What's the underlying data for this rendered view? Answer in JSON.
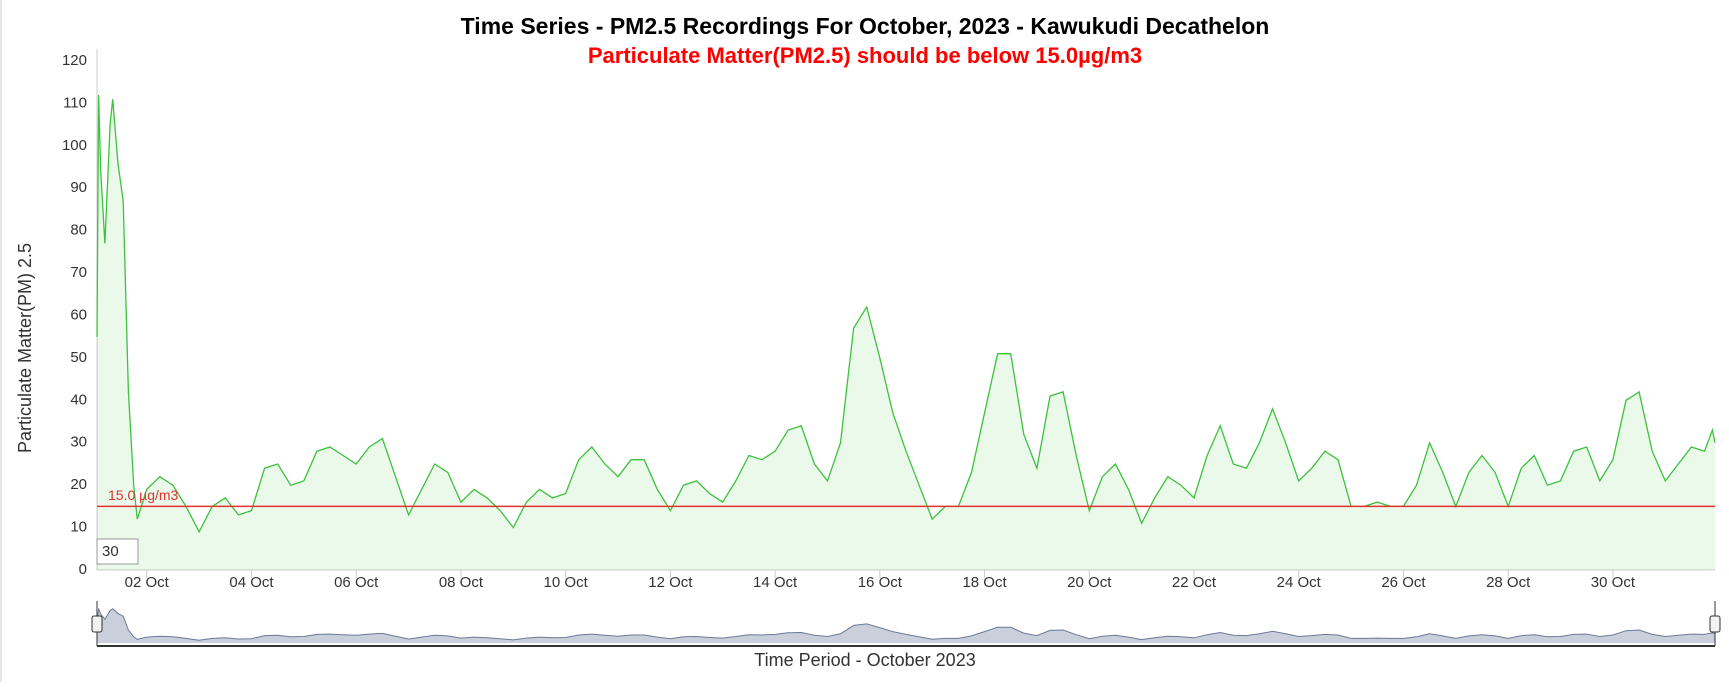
{
  "chart_data": {
    "type": "line",
    "title": "Time Series - PM2.5 Recordings For October, 2023 - Kawukudi Decathelon",
    "subtitle": "Particulate Matter(PM2.5) should be below 15.0µg/m3",
    "y_label": "Particulate Matter(PM) 2.5",
    "x_label": "Time Period - October 2023",
    "range_input": "30",
    "threshold": {
      "value": 15,
      "label": "15.0 µg/m3",
      "color": "#e0322e"
    },
    "x": [
      1.05,
      1.08,
      1.12,
      1.2,
      1.3,
      1.35,
      1.45,
      1.55,
      1.65,
      1.75,
      1.82,
      2,
      2.25,
      2.5,
      2.75,
      3,
      3.25,
      3.5,
      3.75,
      4,
      4.25,
      4.5,
      4.75,
      5,
      5.25,
      5.5,
      5.75,
      6,
      6.25,
      6.5,
      6.75,
      7,
      7.25,
      7.5,
      7.75,
      8,
      8.25,
      8.5,
      8.75,
      9,
      9.25,
      9.5,
      9.75,
      10,
      10.25,
      10.5,
      10.75,
      11,
      11.25,
      11.5,
      11.75,
      12,
      12.25,
      12.5,
      12.75,
      13,
      13.25,
      13.5,
      13.75,
      14,
      14.25,
      14.5,
      14.75,
      15,
      15.25,
      15.5,
      15.75,
      16,
      16.25,
      16.5,
      16.75,
      17,
      17.25,
      17.5,
      17.75,
      18,
      18.25,
      18.5,
      18.75,
      19,
      19.25,
      19.5,
      19.75,
      20,
      20.25,
      20.5,
      20.75,
      21,
      21.25,
      21.5,
      21.75,
      22,
      22.25,
      22.5,
      22.75,
      23,
      23.25,
      23.5,
      23.75,
      24,
      24.25,
      24.5,
      24.75,
      25,
      25.25,
      25.5,
      25.75,
      26,
      26.25,
      26.5,
      26.75,
      27,
      27.25,
      27.5,
      27.75,
      28,
      28.25,
      28.5,
      28.75,
      29,
      29.25,
      29.5,
      29.75,
      30,
      30.25,
      30.5,
      30.75,
      31,
      31.25,
      31.5,
      31.75,
      31.9,
      31.95
    ],
    "series": [
      {
        "name": "PM2.5",
        "color": "#3cc23c",
        "values": [
          55,
          112,
          94,
          77,
          105,
          111,
          96,
          87,
          42,
          20,
          12,
          19,
          22,
          20,
          15,
          9,
          15,
          17,
          13,
          14,
          24,
          25,
          20,
          21,
          28,
          29,
          27,
          25,
          29,
          31,
          22,
          13,
          19,
          25,
          23,
          16,
          19,
          17,
          14,
          10,
          16,
          19,
          17,
          18,
          26,
          29,
          25,
          22,
          26,
          26,
          19,
          14,
          20,
          21,
          18,
          16,
          21,
          27,
          26,
          28,
          33,
          34,
          25,
          21,
          30,
          57,
          62,
          50,
          37,
          28,
          20,
          12,
          15,
          15,
          23,
          37,
          51,
          51,
          32,
          24,
          41,
          42,
          27,
          14,
          22,
          25,
          19,
          11,
          17,
          22,
          20,
          17,
          27,
          34,
          25,
          24,
          30,
          38,
          30,
          21,
          24,
          28,
          26,
          15,
          15,
          16,
          15,
          15,
          20,
          30,
          23,
          15,
          23,
          27,
          23,
          15,
          24,
          27,
          20,
          21,
          28,
          29,
          21,
          26,
          40,
          42,
          28,
          21,
          25,
          29,
          28,
          33,
          30
        ]
      }
    ],
    "xlim": [
      1.05,
      31.95
    ],
    "xticks": [
      {
        "value": 2,
        "label": "02 Oct"
      },
      {
        "value": 4,
        "label": "04 Oct"
      },
      {
        "value": 6,
        "label": "06 Oct"
      },
      {
        "value": 8,
        "label": "08 Oct"
      },
      {
        "value": 10,
        "label": "10 Oct"
      },
      {
        "value": 12,
        "label": "12 Oct"
      },
      {
        "value": 14,
        "label": "14 Oct"
      },
      {
        "value": 16,
        "label": "16 Oct"
      },
      {
        "value": 18,
        "label": "18 Oct"
      },
      {
        "value": 20,
        "label": "20 Oct"
      },
      {
        "value": 22,
        "label": "22 Oct"
      },
      {
        "value": 24,
        "label": "24 Oct"
      },
      {
        "value": 26,
        "label": "26 Oct"
      },
      {
        "value": 28,
        "label": "28 Oct"
      },
      {
        "value": 30,
        "label": "30 Oct"
      }
    ],
    "ylim": [
      0,
      120
    ],
    "yticks": [
      0,
      10,
      20,
      30,
      40,
      50,
      60,
      70,
      80,
      90,
      100,
      110,
      120
    ]
  }
}
